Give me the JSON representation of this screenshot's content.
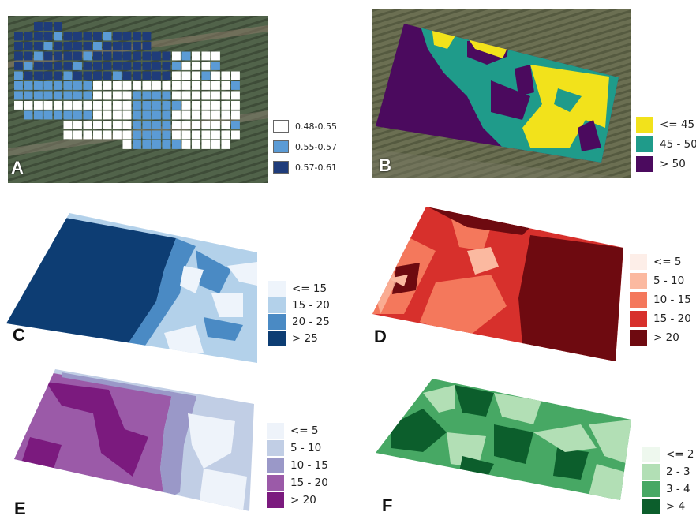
{
  "panels": [
    {
      "letter": "A",
      "legend": [
        {
          "label": "0.48-0.55",
          "color": "#ffffff"
        },
        {
          "label": "0.55-0.57",
          "color": "#5b9bd5"
        },
        {
          "label": "0.57-0.61",
          "color": "#1f3c7a"
        }
      ]
    },
    {
      "letter": "B",
      "legend": [
        {
          "label": "<= 45",
          "color": "#f2e21b"
        },
        {
          "label": "45 - 50",
          "color": "#1f9b8a"
        },
        {
          "label": "> 50",
          "color": "#4b0a5e"
        }
      ]
    },
    {
      "letter": "C",
      "legend": [
        {
          "label": "<= 15",
          "color": "#eef4fb"
        },
        {
          "label": "15 - 20",
          "color": "#b3d1ea"
        },
        {
          "label": "20 - 25",
          "color": "#4a8ac4"
        },
        {
          "label": "> 25",
          "color": "#0d3d73"
        }
      ]
    },
    {
      "letter": "D",
      "legend": [
        {
          "label": "<= 5",
          "color": "#fdeee8"
        },
        {
          "label": "5 - 10",
          "color": "#fbb9a0"
        },
        {
          "label": "10 - 15",
          "color": "#f4785c"
        },
        {
          "label": "15 - 20",
          "color": "#d7302c"
        },
        {
          "label": "> 20",
          "color": "#6e0a10"
        }
      ]
    },
    {
      "letter": "E",
      "legend": [
        {
          "label": "<= 5",
          "color": "#eef3fa"
        },
        {
          "label": "5 - 10",
          "color": "#c1cee5"
        },
        {
          "label": "10 - 15",
          "color": "#9a98c8"
        },
        {
          "label": "15 - 20",
          "color": "#9b5aa8"
        },
        {
          "label": "> 20",
          "color": "#7b1a7e"
        }
      ]
    },
    {
      "letter": "F",
      "legend": [
        {
          "label": "<= 2",
          "color": "#eef8ee"
        },
        {
          "label": "2 - 3",
          "color": "#b2dfb5"
        },
        {
          "label": "3 - 4",
          "color": "#47a864"
        },
        {
          "label": "> 4",
          "color": "#0c5e2c"
        }
      ]
    }
  ]
}
